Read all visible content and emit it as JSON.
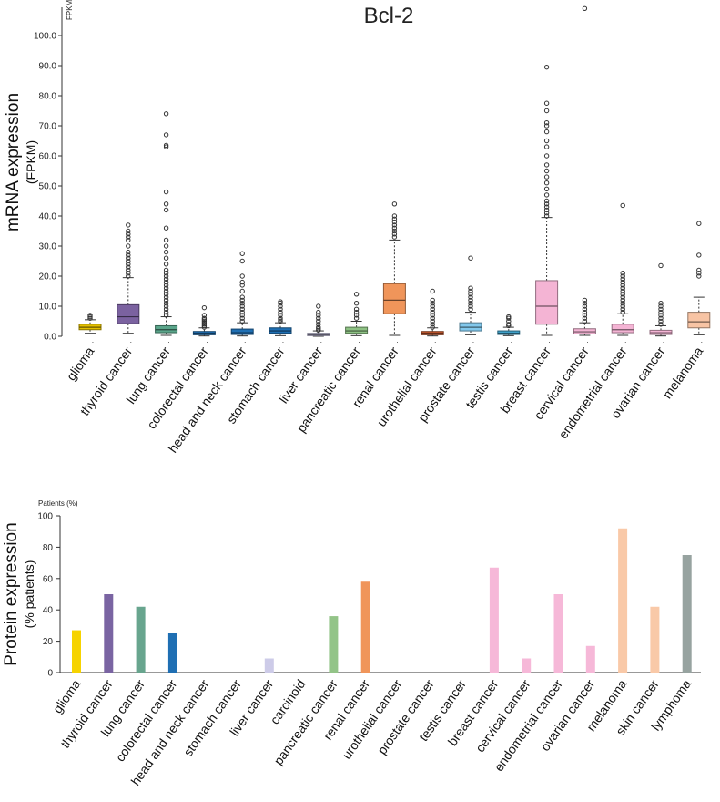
{
  "chart_data": [
    {
      "type": "box",
      "title": "Bcl-2",
      "ylabel": "mRNA expression",
      "ylabel_sub": "(FPKM)",
      "unit_label": "FPKM",
      "ylim": [
        0,
        110
      ],
      "yticks": [
        "0.0",
        "10.0",
        "20.0",
        "30.0",
        "40.0",
        "50.0",
        "60.0",
        "70.0",
        "80.0",
        "90.0",
        "100.0"
      ],
      "categories": [
        "glioma",
        "thyroid cancer",
        "lung cancer",
        "colorectal cancer",
        "head and neck cancer",
        "stomach cancer",
        "liver cancer",
        "pancreatic cancer",
        "renal cancer",
        "urothelial cancer",
        "prostate cancer",
        "testis cancer",
        "breast cancer",
        "cervical cancer",
        "endometrial cancer",
        "ovarian cancer",
        "melanoma"
      ],
      "colors": [
        "#e4c000",
        "#7b62a0",
        "#5aa58a",
        "#1f6fb3",
        "#1f6fb3",
        "#1f6fb3",
        "#c8c4e6",
        "#8ec284",
        "#f0955a",
        "#c85a2e",
        "#82c8ec",
        "#3fa0c8",
        "#f4b4d4",
        "#f4b4d4",
        "#f4b4d4",
        "#f4b4d4",
        "#f8c4a4"
      ],
      "series": [
        {
          "name": "glioma",
          "whisker_low": 1,
          "q1": 2.2,
          "median": 3,
          "q3": 4,
          "whisker_high": 5.5,
          "outliers": [
            6,
            6.5,
            7
          ]
        },
        {
          "name": "thyroid cancer",
          "whisker_low": 1,
          "q1": 4.2,
          "median": 6.5,
          "q3": 10.5,
          "whisker_high": 19.5,
          "outliers": [
            20,
            21,
            22,
            23,
            24,
            25,
            26,
            27,
            28,
            30,
            32,
            33,
            34,
            35,
            37
          ]
        },
        {
          "name": "lung cancer",
          "whisker_low": 0.3,
          "q1": 1.2,
          "median": 2.2,
          "q3": 3.5,
          "whisker_high": 6.5,
          "outliers": [
            7,
            8,
            9,
            10,
            11,
            12,
            13,
            14,
            15,
            16,
            17,
            18,
            19,
            20,
            21,
            22,
            24,
            26,
            28,
            30,
            32,
            36,
            42,
            44,
            48,
            63,
            63.5,
            67,
            74
          ]
        },
        {
          "name": "colorectal cancer",
          "whisker_low": 0.1,
          "q1": 0.5,
          "median": 1,
          "q3": 1.6,
          "whisker_high": 2.8,
          "outliers": [
            3,
            3.5,
            4,
            4.5,
            5,
            5.5,
            6,
            7,
            9.5
          ]
        },
        {
          "name": "head and neck cancer",
          "whisker_low": 0.1,
          "q1": 0.6,
          "median": 1.2,
          "q3": 2.4,
          "whisker_high": 4.5,
          "outliers": [
            5,
            6,
            7,
            8,
            9,
            10,
            11,
            12,
            13,
            15,
            17,
            18,
            20,
            25,
            27.5
          ]
        },
        {
          "name": "stomach cancer",
          "whisker_low": 0.2,
          "q1": 1,
          "median": 1.8,
          "q3": 2.8,
          "whisker_high": 4.5,
          "outliers": [
            5,
            5.5,
            6,
            7,
            8,
            9,
            10,
            11,
            11.5
          ]
        },
        {
          "name": "liver cancer",
          "whisker_low": 0,
          "q1": 0.2,
          "median": 0.5,
          "q3": 1,
          "whisker_high": 1.8,
          "outliers": [
            2,
            2.5,
            3,
            4,
            5,
            6,
            7,
            8,
            10
          ]
        },
        {
          "name": "pancreatic cancer",
          "whisker_low": 0.2,
          "q1": 1,
          "median": 1.8,
          "q3": 3,
          "whisker_high": 5,
          "outliers": [
            6,
            7,
            8,
            9,
            11,
            14
          ]
        },
        {
          "name": "renal cancer",
          "whisker_low": 0.3,
          "q1": 7.5,
          "median": 12,
          "q3": 17.5,
          "whisker_high": 32,
          "outliers": [
            33,
            34,
            35,
            36,
            37,
            38,
            39,
            40,
            44
          ]
        },
        {
          "name": "urothelial cancer",
          "whisker_low": 0.1,
          "q1": 0.5,
          "median": 1,
          "q3": 1.6,
          "whisker_high": 2.8,
          "outliers": [
            3,
            4,
            5,
            6,
            7,
            8,
            9,
            10,
            11,
            12,
            15
          ]
        },
        {
          "name": "prostate cancer",
          "whisker_low": 0.5,
          "q1": 1.8,
          "median": 3,
          "q3": 4.5,
          "whisker_high": 8,
          "outliers": [
            9,
            10,
            11,
            12,
            13,
            14,
            15,
            16,
            26
          ]
        },
        {
          "name": "testis cancer",
          "whisker_low": 0.2,
          "q1": 0.6,
          "median": 1,
          "q3": 1.8,
          "whisker_high": 3,
          "outliers": [
            3.5,
            4,
            5,
            6,
            6.5
          ]
        },
        {
          "name": "breast cancer",
          "whisker_low": 0.3,
          "q1": 4,
          "median": 10,
          "q3": 18.5,
          "whisker_high": 39.5,
          "outliers": [
            40,
            41,
            42,
            43,
            44,
            45,
            47,
            49,
            51,
            53,
            55,
            57,
            60,
            63,
            65,
            68,
            70,
            71,
            75,
            77.5,
            89.5
          ]
        },
        {
          "name": "cervical cancer",
          "whisker_low": 0.3,
          "q1": 0.8,
          "median": 1.5,
          "q3": 2.5,
          "whisker_high": 4.5,
          "outliers": [
            5,
            6,
            7,
            8,
            9,
            10,
            11,
            12,
            109
          ]
        },
        {
          "name": "endometrial cancer",
          "whisker_low": 0.3,
          "q1": 1.2,
          "median": 2.2,
          "q3": 4,
          "whisker_high": 7.5,
          "outliers": [
            8,
            9,
            10,
            11,
            12,
            13,
            14,
            15,
            16,
            17,
            18,
            19,
            20,
            21,
            43.5
          ]
        },
        {
          "name": "ovarian cancer",
          "whisker_low": 0.1,
          "q1": 0.6,
          "median": 1.2,
          "q3": 2,
          "whisker_high": 3.5,
          "outliers": [
            4,
            5,
            6,
            7,
            8,
            9,
            10,
            11,
            23.5
          ]
        },
        {
          "name": "melanoma",
          "whisker_low": 0.5,
          "q1": 2.8,
          "median": 4.8,
          "q3": 8,
          "whisker_high": 13,
          "outliers": [
            20,
            21,
            22,
            27,
            37.5
          ]
        }
      ]
    },
    {
      "type": "bar",
      "ylabel": "Protein expression",
      "ylabel_sub": "(% patients)",
      "unit_label": "Patients (%)",
      "ylim": [
        0,
        100
      ],
      "yticks": [
        "0",
        "20",
        "40",
        "60",
        "80",
        "100"
      ],
      "categories": [
        "glioma",
        "thyroid cancer",
        "lung cancer",
        "colorectal cancer",
        "head and neck cancer",
        "stomach cancer",
        "liver cancer",
        "carcinoid",
        "pancreatic cancer",
        "renal cancer",
        "urothelial cancer",
        "prostate cancer",
        "testis cancer",
        "breast cancer",
        "cervical cancer",
        "endometrial cancer",
        "ovarian cancer",
        "melanoma",
        "skin cancer",
        "lymphoma"
      ],
      "values": [
        27,
        50,
        42,
        25,
        0,
        0,
        9,
        0,
        36,
        58,
        0,
        0,
        0,
        67,
        9,
        50,
        17,
        92,
        42,
        75
      ],
      "colors": [
        "#f6d300",
        "#7a64a2",
        "#68a58e",
        "#1f6fb3",
        "#1f6fb3",
        "#1f6fb3",
        "#cdcbe8",
        "#bdbdbd",
        "#93c488",
        "#f0955a",
        "#c85a2e",
        "#82c8ec",
        "#3fa0c8",
        "#f6b8d8",
        "#f6b8d8",
        "#f6b8d8",
        "#f6b8d8",
        "#f9c9a8",
        "#f9c9a8",
        "#97a3a0"
      ]
    }
  ]
}
